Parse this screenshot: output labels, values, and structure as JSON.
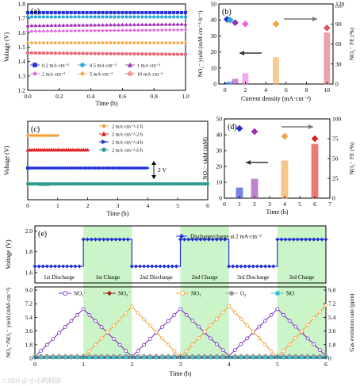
{
  "figure": {
    "watermark": "CSDN @ 小小的科研"
  },
  "chart_data": [
    {
      "id": "a",
      "panel_label": "(a)",
      "type": "line",
      "xlabel": "Time (h)",
      "ylabel": "Voltage (V)",
      "xlim": [
        0.0,
        1.0
      ],
      "ylim": [
        1.2,
        1.8
      ],
      "xticks": [
        "0.0",
        "0.2",
        "0.4",
        "0.6",
        "0.8",
        "1.0"
      ],
      "yticks": [
        "1.2",
        "1.3",
        "1.4",
        "1.5",
        "1.6",
        "1.7",
        "1.8"
      ],
      "legend": "bottom",
      "series": [
        {
          "name": "0.2 mA·cm⁻²",
          "color": "#2131d6",
          "marker": "square",
          "values": [
            [
              0,
              1.74
            ],
            [
              1.0,
              1.74
            ]
          ]
        },
        {
          "name": "0.5 mA·cm⁻²",
          "color": "#2aa9d8",
          "marker": "circle",
          "values": [
            [
              0,
              1.71
            ],
            [
              1.0,
              1.71
            ]
          ]
        },
        {
          "name": "1 mA·cm⁻²",
          "color": "#9b2fb0",
          "marker": "triangle",
          "values": [
            [
              0,
              1.65
            ],
            [
              1.0,
              1.66
            ]
          ]
        },
        {
          "name": "2 mA·cm⁻²",
          "color": "#e267e0",
          "marker": "diamond",
          "values": [
            [
              0,
              1.61
            ],
            [
              1.0,
              1.62
            ]
          ]
        },
        {
          "name": "5 mA·cm⁻²",
          "color": "#f2a23b",
          "marker": "diamond",
          "values": [
            [
              0,
              1.53
            ],
            [
              1.0,
              1.53
            ]
          ]
        },
        {
          "name": "10 mA·cm⁻²",
          "color": "#e05565",
          "marker": "circle-x",
          "values": [
            [
              0,
              1.46
            ],
            [
              1.0,
              1.45
            ]
          ]
        }
      ]
    },
    {
      "id": "b",
      "panel_label": "(b)",
      "type": "bar",
      "xlabel": "Current density (mA·cm⁻²)",
      "ylabel": "NO₂⁻ yield (mM·cm⁻²·h⁻¹)",
      "ylabel_right": "NO₂⁻ FE (%)",
      "xlim": [
        0,
        10
      ],
      "ylim": [
        0,
        50
      ],
      "ylim_right": [
        0,
        120
      ],
      "xticks": [
        "0",
        "2",
        "4",
        "6",
        "8",
        "10"
      ],
      "yticks": [
        "0",
        "10",
        "20",
        "30",
        "40",
        "50"
      ],
      "yticks_right": [
        "0",
        "30",
        "60",
        "90",
        "120"
      ],
      "corner_note": "120",
      "x": [
        0.2,
        0.5,
        1,
        2,
        5,
        10
      ],
      "yield": [
        0.8,
        1.5,
        3.0,
        6.5,
        16.5,
        32.0
      ],
      "fe": [
        97,
        96,
        92,
        90,
        90,
        84
      ],
      "colors": [
        "#2131d6",
        "#2aa9d8",
        "#9b2fb0",
        "#e267e0",
        "#f2a23b",
        "#e05565"
      ]
    },
    {
      "id": "c",
      "panel_label": "(c)",
      "type": "line",
      "xlabel": "Time (h)",
      "ylabel": "Voltage (V)",
      "xlim": [
        0,
        6
      ],
      "xticks": [
        "0",
        "1",
        "2",
        "3",
        "4",
        "5",
        "6"
      ],
      "scale_bar": "2 V",
      "legend": "top-right",
      "series": [
        {
          "name": "2 mA·cm⁻²-1 h",
          "color": "#f2a23b",
          "marker": "diamond",
          "duration": 1,
          "level": 4
        },
        {
          "name": "2 mA·cm⁻²-2 h",
          "color": "#e02020",
          "marker": "triangle",
          "duration": 2,
          "level": 3
        },
        {
          "name": "2 mA·cm⁻²-4 h",
          "color": "#2131d6",
          "marker": "triangle-right",
          "duration": 4,
          "level": 2
        },
        {
          "name": "2 mA·cm⁻²-6 h",
          "color": "#2f9a92",
          "marker": "circle",
          "duration": 6,
          "level": 1
        }
      ]
    },
    {
      "id": "d",
      "panel_label": "(d)",
      "type": "bar",
      "xlabel": "Time (h)",
      "ylabel": "NO₂⁻ yield (mM)",
      "ylabel_right": "NO₂⁻ FE (%)",
      "xlim": [
        0,
        7
      ],
      "ylim": [
        0,
        50
      ],
      "ylim_right": [
        0,
        100
      ],
      "xticks": [
        "0",
        "1",
        "2",
        "3",
        "4",
        "5",
        "6",
        "7"
      ],
      "yticks": [
        "0",
        "10",
        "20",
        "30",
        "40",
        "50"
      ],
      "yticks_right": [
        "0",
        "25",
        "50",
        "75",
        "100"
      ],
      "x": [
        1,
        2,
        4,
        6
      ],
      "yield": [
        6.5,
        12.0,
        23.5,
        34.0
      ],
      "fe": [
        88,
        84,
        78,
        75
      ],
      "colors": [
        "#2131d6",
        "#9b2fb0",
        "#f2a23b",
        "#e02020"
      ]
    },
    {
      "id": "e",
      "panel_label": "(e)",
      "type": "line",
      "xlabel": "Time (h)",
      "ylabel": "NO₂⁻/NO₃⁻ yield (mM·cm⁻²)",
      "ylabel_right": "Gas evolution rate (ppm)",
      "xlim": [
        0,
        6
      ],
      "xticks": [
        "0",
        "1",
        "2",
        "3",
        "4",
        "5",
        "6"
      ],
      "top": {
        "ylabel": "Voltage (V)",
        "yticks": [
          "1.6",
          "1.8",
          "2.0"
        ],
        "ylim": [
          1.5,
          2.05
        ],
        "legend": "Discharge/charge at 2 mA·cm⁻²",
        "phases": [
          "1st Discharge",
          "1st Charge",
          "2nd Discharge",
          "2nd Charge",
          "3rd Discharge",
          "3rd Charge"
        ],
        "discharge_v": 1.66,
        "charge_v": 1.92
      },
      "bottom": {
        "ylim": [
          0,
          9.0
        ],
        "yticks": [
          "0",
          "1.8",
          "3.6",
          "5.4",
          "7.2",
          "9.0"
        ],
        "ylim_right": [
          0,
          9.0
        ],
        "yticks_right": [
          "0",
          "1.8",
          "3.6",
          "5.4",
          "7.2",
          "9.0"
        ],
        "series": [
          {
            "name": "NO₂⁻",
            "color": "#7b2fbf",
            "marker": "circle",
            "x": [
              0,
              1,
              2,
              3,
              4,
              5,
              6
            ],
            "y": [
              0.2,
              6.5,
              0.2,
              6.5,
              0.3,
              6.5,
              0.3
            ]
          },
          {
            "name": "NO₃⁻",
            "color": "#a0221b",
            "marker": "diamond",
            "x": [
              0,
              6
            ],
            "y": [
              0.2,
              0.2
            ]
          },
          {
            "name": "NO₂",
            "color": "#f2a23b",
            "marker": "circle",
            "x": [
              0,
              1,
              2,
              3,
              4,
              5,
              6
            ],
            "y": [
              0.1,
              0.1,
              6.8,
              0.1,
              6.9,
              0.1,
              7.0
            ]
          },
          {
            "name": "O₂",
            "color": "#9a9a9a",
            "marker": "circle",
            "x": [
              0,
              6
            ],
            "y": [
              0.3,
              0.3
            ]
          },
          {
            "name": "NO",
            "color": "#3fbfd0",
            "marker": "circle",
            "x": [
              0,
              6
            ],
            "y": [
              0.1,
              0.1
            ]
          }
        ]
      }
    }
  ]
}
